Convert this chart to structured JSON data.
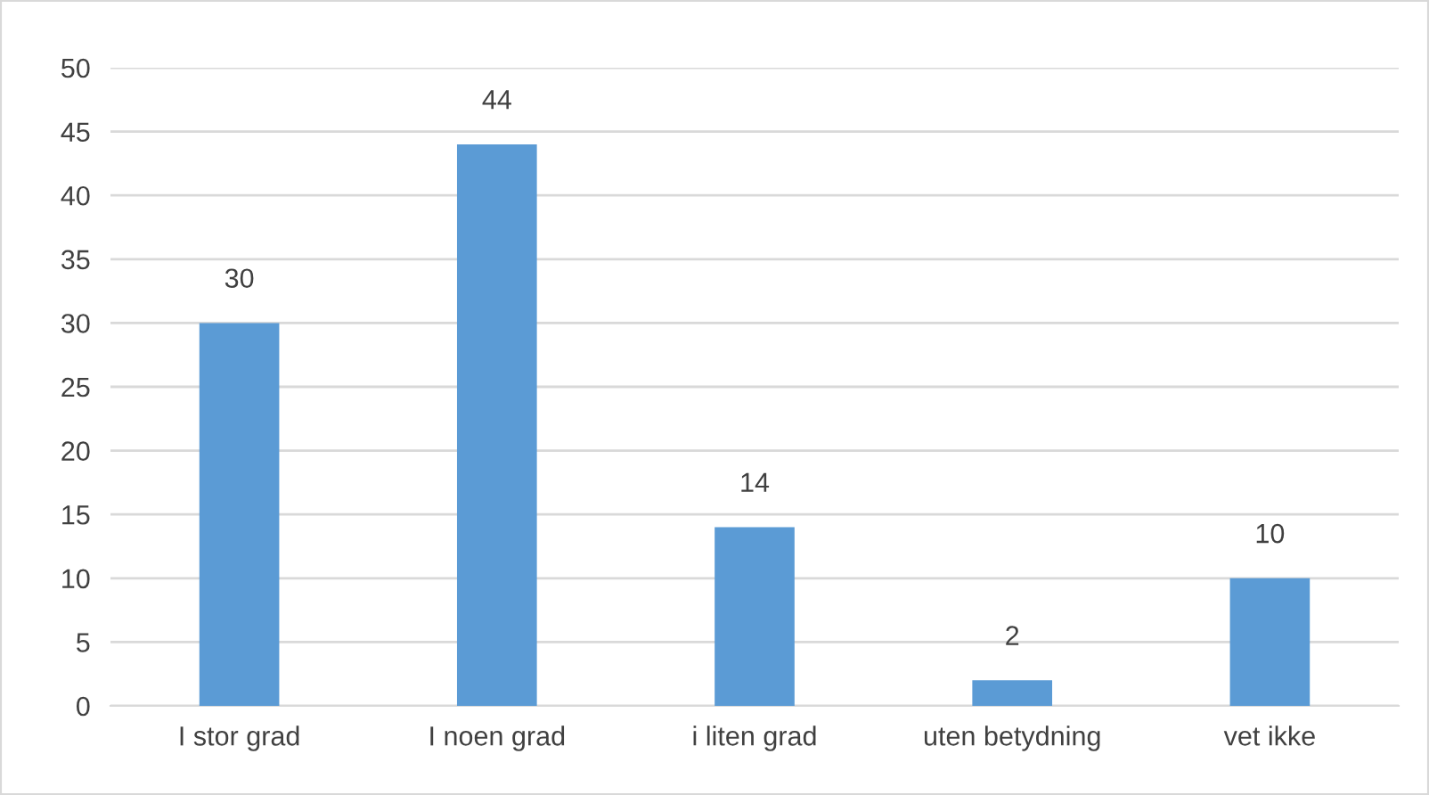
{
  "chart_data": {
    "type": "bar",
    "categories": [
      "I stor grad",
      "I noen grad",
      "i liten grad",
      "uten betydning",
      "vet ikke"
    ],
    "values": [
      30,
      44,
      14,
      2,
      10
    ],
    "color": "#5b9bd5",
    "ylim": [
      0,
      50
    ],
    "yticks": [
      0,
      5,
      10,
      15,
      20,
      25,
      30,
      35,
      40,
      45,
      50
    ],
    "grid": "y",
    "data_labels": true
  }
}
